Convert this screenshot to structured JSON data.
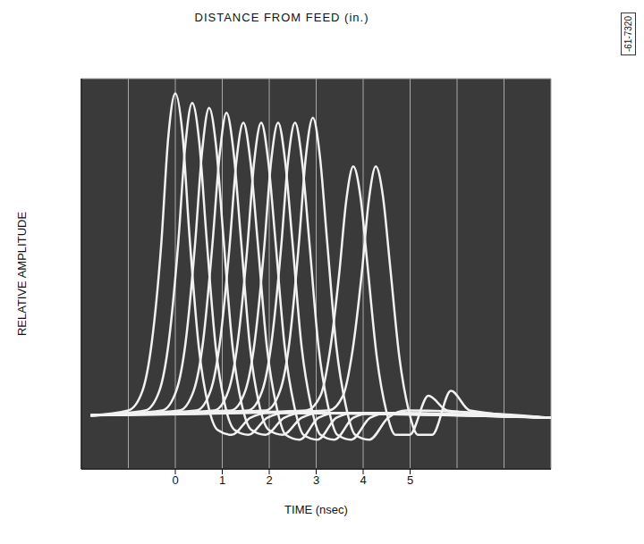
{
  "chart_data": {
    "type": "line",
    "x_label": "TIME (nsec)",
    "y_label": "RELATIVE AMPLITUDE",
    "x2_label": "DISTANCE FROM FEED (in.)",
    "figure_number": "-61-7320",
    "xlim": [
      -2,
      8
    ],
    "xticks": [
      0,
      1,
      2,
      3,
      4,
      5
    ],
    "ylim": [
      -1,
      7
    ],
    "yticks": [
      -1,
      0,
      1,
      2,
      3,
      4,
      5,
      6,
      7
    ],
    "x2lim": [
      -17.8,
      91.3
    ],
    "x2ticks": [
      4,
      12,
      20,
      28,
      36,
      44,
      52
    ],
    "grid": true,
    "tick_labels": "x",
    "color": "#f2f2f2",
    "series": [
      {
        "x": [
          -1.8,
          -1.0,
          -0.7,
          -0.5,
          -0.3,
          -0.15,
          0,
          0.15,
          0.3,
          0.5,
          0.7,
          0.9,
          1.2,
          1.6,
          2.0,
          8.0
        ],
        "values": [
          0.1,
          0.2,
          0.6,
          1.6,
          3.6,
          5.8,
          6.7,
          5.9,
          3.8,
          1.5,
          0.3,
          -0.2,
          -0.3,
          0.05,
          0.15,
          0.05
        ]
      },
      {
        "x": [
          -1.8,
          -0.64,
          -0.34,
          -0.14,
          0.06,
          0.21,
          0.36,
          0.51,
          0.66,
          0.86,
          1.06,
          1.26,
          1.56,
          1.96,
          2.36,
          8.0
        ],
        "values": [
          0.1,
          0.2,
          0.6,
          1.6,
          3.6,
          5.6,
          6.5,
          5.7,
          3.8,
          1.5,
          0.3,
          -0.2,
          -0.3,
          0.05,
          0.15,
          0.05
        ]
      },
      {
        "x": [
          -1.8,
          -0.28,
          0.02,
          0.22,
          0.42,
          0.57,
          0.72,
          0.87,
          1.02,
          1.22,
          1.42,
          1.62,
          1.92,
          2.32,
          2.72,
          8.0
        ],
        "values": [
          0.1,
          0.2,
          0.6,
          1.6,
          3.6,
          5.5,
          6.4,
          5.6,
          3.8,
          1.5,
          0.3,
          -0.2,
          -0.3,
          0.05,
          0.15,
          0.05
        ]
      },
      {
        "x": [
          -1.8,
          0.09,
          0.39,
          0.59,
          0.79,
          0.94,
          1.09,
          1.24,
          1.39,
          1.59,
          1.79,
          1.99,
          2.29,
          2.69,
          3.09,
          8.0
        ],
        "values": [
          0.1,
          0.2,
          0.6,
          1.6,
          3.6,
          5.4,
          6.3,
          5.5,
          3.8,
          1.5,
          0.3,
          -0.2,
          -0.3,
          0.05,
          0.15,
          0.05
        ]
      },
      {
        "x": [
          -1.8,
          0.45,
          0.75,
          0.95,
          1.15,
          1.3,
          1.45,
          1.6,
          1.75,
          1.95,
          2.15,
          2.35,
          2.65,
          3.05,
          3.45,
          8.0
        ],
        "values": [
          0.1,
          0.2,
          0.6,
          1.6,
          3.5,
          5.3,
          6.1,
          5.3,
          3.7,
          1.5,
          0.3,
          -0.3,
          -0.4,
          0.05,
          0.15,
          0.05
        ]
      },
      {
        "x": [
          -1.8,
          0.83,
          1.13,
          1.33,
          1.53,
          1.68,
          1.83,
          1.98,
          2.13,
          2.33,
          2.53,
          2.73,
          3.03,
          3.43,
          3.83,
          8.0
        ],
        "values": [
          0.1,
          0.2,
          0.6,
          1.6,
          3.5,
          5.3,
          6.1,
          5.3,
          3.7,
          1.5,
          0.3,
          -0.3,
          -0.4,
          0.05,
          0.15,
          0.05
        ]
      },
      {
        "x": [
          -1.8,
          1.19,
          1.49,
          1.69,
          1.89,
          2.04,
          2.19,
          2.34,
          2.49,
          2.69,
          2.89,
          3.09,
          3.39,
          3.79,
          4.19,
          8.0
        ],
        "values": [
          0.1,
          0.2,
          0.6,
          1.6,
          3.5,
          5.3,
          6.1,
          5.3,
          3.7,
          1.5,
          0.3,
          -0.3,
          -0.4,
          0.05,
          0.15,
          0.05
        ]
      },
      {
        "x": [
          -1.8,
          1.55,
          1.85,
          2.05,
          2.25,
          2.4,
          2.55,
          2.7,
          2.85,
          3.05,
          3.25,
          3.45,
          3.75,
          4.15,
          4.55,
          8.0
        ],
        "values": [
          0.1,
          0.2,
          0.6,
          1.6,
          3.5,
          5.3,
          6.1,
          5.3,
          3.7,
          1.5,
          0.3,
          -0.3,
          -0.4,
          0.05,
          0.15,
          0.05
        ]
      },
      {
        "x": [
          -1.8,
          1.93,
          2.23,
          2.43,
          2.63,
          2.78,
          2.93,
          3.08,
          3.23,
          3.43,
          3.63,
          3.83,
          4.13,
          4.53,
          4.93,
          8.0
        ],
        "values": [
          0.1,
          0.2,
          0.6,
          1.6,
          3.6,
          5.4,
          6.2,
          5.4,
          3.7,
          1.5,
          0.3,
          -0.3,
          -0.4,
          0.05,
          0.2,
          0.05
        ]
      },
      {
        "x": [
          -1.8,
          2.79,
          3.09,
          3.29,
          3.49,
          3.64,
          3.79,
          3.94,
          4.09,
          4.29,
          4.49,
          4.69,
          4.99,
          5.39,
          5.79,
          8.0
        ],
        "values": [
          0.1,
          0.2,
          0.5,
          1.4,
          3.0,
          4.5,
          5.2,
          4.6,
          3.2,
          1.3,
          0.2,
          -0.3,
          -0.3,
          0.5,
          0.2,
          0.05
        ]
      },
      {
        "x": [
          -1.8,
          3.27,
          3.57,
          3.77,
          3.97,
          4.12,
          4.27,
          4.42,
          4.57,
          4.77,
          4.97,
          5.17,
          5.47,
          5.87,
          6.27,
          8.0
        ],
        "values": [
          0.1,
          0.2,
          0.5,
          1.4,
          3.0,
          4.5,
          5.2,
          4.6,
          3.2,
          1.3,
          0.2,
          -0.3,
          -0.3,
          0.6,
          0.2,
          0.05
        ]
      }
    ]
  }
}
